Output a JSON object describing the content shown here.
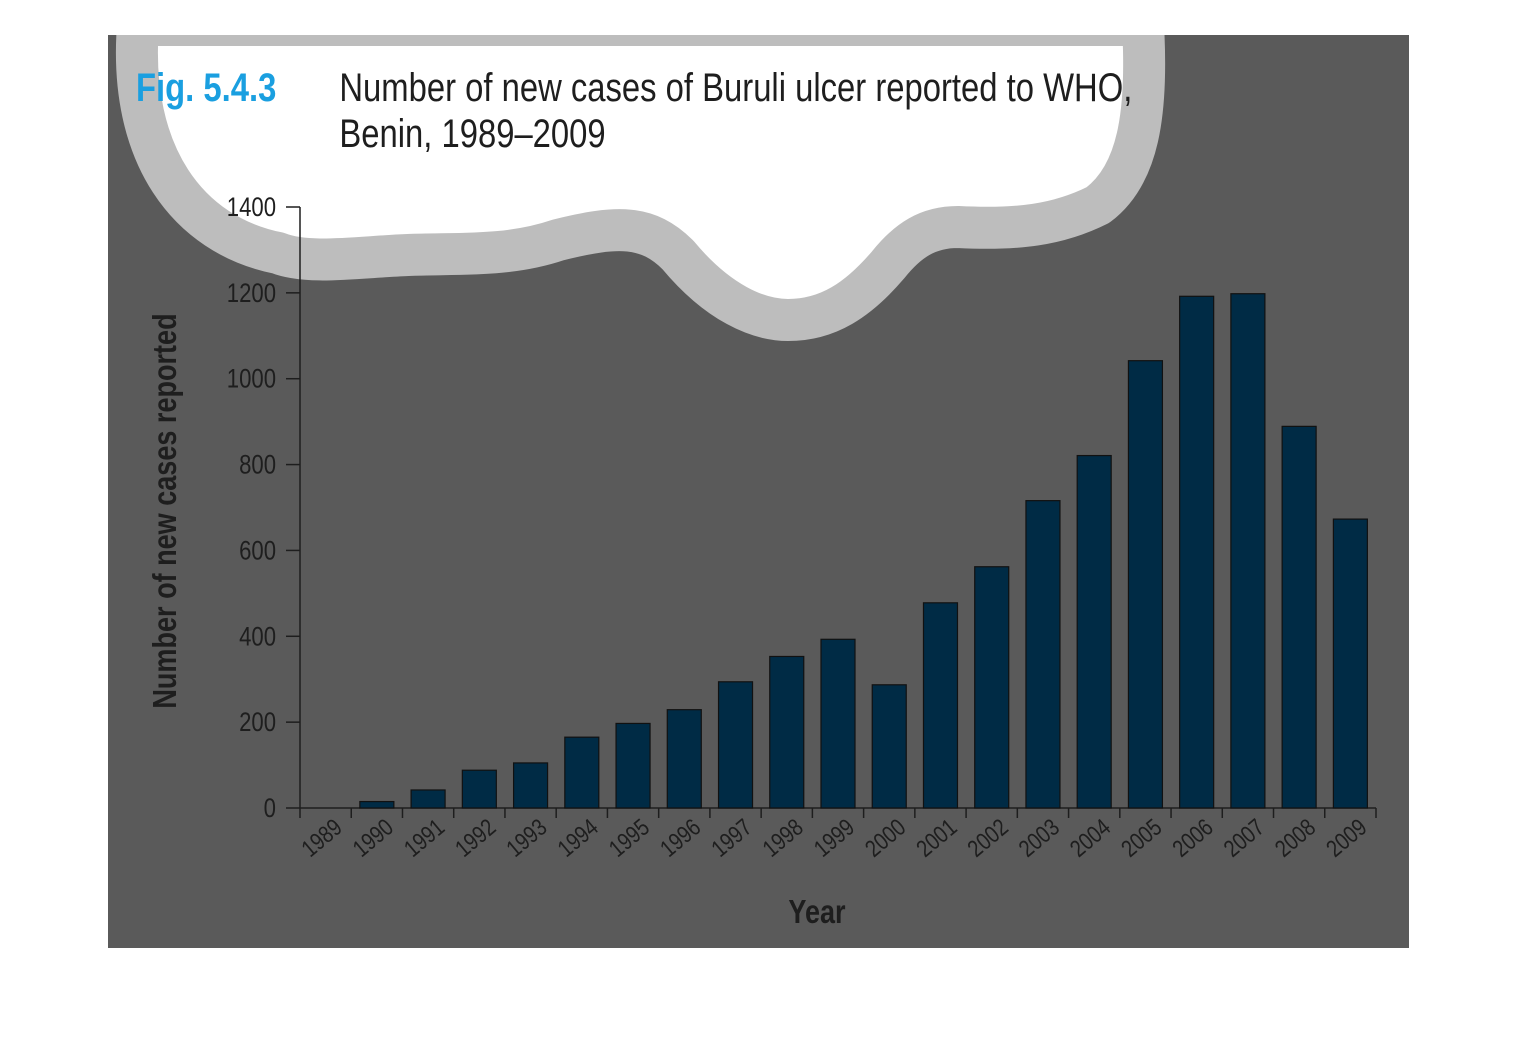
{
  "figure": {
    "label": "Fig. 5.4.3",
    "title_line1": "Number of new cases of Buruli ulcer reported to WHO,",
    "title_line2": "Benin, 1989–2009"
  },
  "colors": {
    "panel_background": "#5a5a5a",
    "bar_fill": "#002b45",
    "figure_label": "#1a9fe0",
    "cloud_outline": "#bdbdbd",
    "cloud_fill": "#ffffff"
  },
  "chart_data": {
    "type": "bar",
    "title": "Number of new cases of Buruli ulcer reported to WHO, Benin, 1989–2009",
    "xlabel": "Year",
    "ylabel": "Number of new cases reported",
    "categories": [
      "1989",
      "1990",
      "1991",
      "1992",
      "1993",
      "1994",
      "1995",
      "1996",
      "1997",
      "1998",
      "1999",
      "2000",
      "2001",
      "2002",
      "2003",
      "2004",
      "2005",
      "2006",
      "2007",
      "2008",
      "2009"
    ],
    "values": [
      0,
      15,
      42,
      88,
      105,
      165,
      197,
      229,
      294,
      353,
      393,
      287,
      478,
      562,
      716,
      821,
      1042,
      1192,
      1198,
      889,
      673
    ],
    "ylim": [
      0,
      1400
    ],
    "yticks": [
      0,
      200,
      400,
      600,
      800,
      1000,
      1200,
      1400
    ],
    "grid": false,
    "legend": "none"
  }
}
